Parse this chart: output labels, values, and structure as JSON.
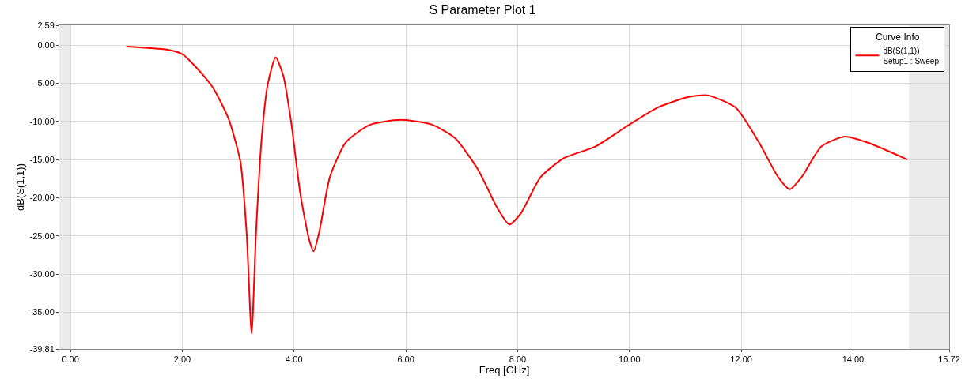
{
  "chart_data": {
    "type": "line",
    "title": "S Parameter Plot 1",
    "xlabel": "Freq [GHz]",
    "ylabel": "dB(S(1,1))",
    "legend_title": "Curve Info",
    "legend": "top right",
    "grid": true,
    "marker": "none",
    "line_style": "solid",
    "xlim": [
      -0.2,
      15.72
    ],
    "xticks": [
      {
        "value": 0,
        "label": "0.00"
      },
      {
        "value": 2,
        "label": "2.00"
      },
      {
        "value": 4,
        "label": "4.00"
      },
      {
        "value": 6,
        "label": "6.00"
      },
      {
        "value": 8,
        "label": "8.00"
      },
      {
        "value": 10,
        "label": "10.00"
      },
      {
        "value": 12,
        "label": "12.00"
      },
      {
        "value": 14,
        "label": "14.00"
      },
      {
        "value": 15.72,
        "label": "15.72"
      }
    ],
    "ylim": [
      -39.81,
      2.59
    ],
    "yticks": [
      {
        "value": -39.81,
        "label": "-39.81"
      },
      {
        "value": -35,
        "label": "-35.00"
      },
      {
        "value": -30,
        "label": "-30.00"
      },
      {
        "value": -25,
        "label": "-25.00"
      },
      {
        "value": -20,
        "label": "-20.00"
      },
      {
        "value": -15,
        "label": "-15.00"
      },
      {
        "value": -10,
        "label": "-10.00"
      },
      {
        "value": -5,
        "label": "-5.00"
      },
      {
        "value": 0,
        "label": "0.00"
      },
      {
        "value": 2.59,
        "label": "2.59"
      }
    ],
    "bands": [
      {
        "axis": "x",
        "from": -0.2,
        "to": 0,
        "color": "#ebebeb"
      },
      {
        "axis": "x",
        "from": 15,
        "to": 15.72,
        "color": "#ebebeb"
      }
    ],
    "x": [
      1.0,
      1.72,
      2.0,
      2.27,
      2.55,
      2.83,
      3.04,
      3.15,
      3.24,
      3.32,
      3.42,
      3.53,
      3.67,
      3.81,
      3.95,
      4.11,
      4.27,
      4.35,
      4.45,
      4.64,
      4.92,
      5.34,
      5.9,
      6.46,
      6.88,
      7.29,
      7.64,
      7.85,
      8.06,
      8.41,
      8.83,
      9.39,
      9.94,
      10.5,
      11.06,
      11.41,
      11.9,
      12.32,
      12.66,
      12.87,
      13.08,
      13.43,
      13.85,
      14.27,
      14.97
    ],
    "series": [
      {
        "name": "dB(S(1,1))\nSetup1 : Sweep",
        "color": "#ff0000",
        "values": [
          -0.2,
          -0.6,
          -1.2,
          -3.1,
          -5.6,
          -9.7,
          -15.3,
          -24.5,
          -37.8,
          -24.5,
          -12.2,
          -5.1,
          -1.6,
          -4.1,
          -10.2,
          -19.4,
          -25.5,
          -27.0,
          -24.5,
          -17.3,
          -12.8,
          -10.5,
          -9.8,
          -10.4,
          -12.2,
          -16.3,
          -21.4,
          -23.5,
          -22.0,
          -17.3,
          -14.8,
          -13.3,
          -10.7,
          -8.2,
          -6.8,
          -6.6,
          -8.2,
          -12.8,
          -17.3,
          -18.9,
          -17.3,
          -13.3,
          -12.0,
          -12.8,
          -15.0
        ]
      }
    ]
  }
}
